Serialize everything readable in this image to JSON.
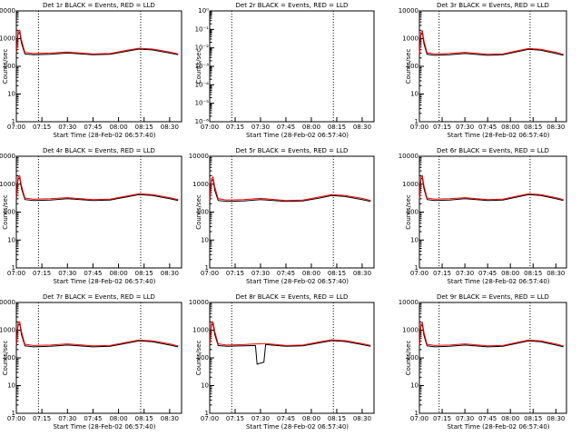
{
  "chart_data": [
    {
      "type": "line",
      "title": "Det 1r BLACK = Events, RED = LLD",
      "xlabel": "Start Time (28-Feb-02 06:57:40)",
      "ylabel": "Counts/sec",
      "log_y": true,
      "xlim": [
        "07:00",
        "08:37"
      ],
      "xticks": [
        "07:00",
        "07:15",
        "07:30",
        "07:45",
        "08:00",
        "08:15",
        "08:30"
      ],
      "ylim": [
        1,
        10000
      ],
      "yticks": [
        1,
        10,
        100,
        1000,
        10000
      ],
      "vlines": [
        "07:13",
        "08:13"
      ],
      "x": [
        "07:00",
        "07:01",
        "07:02",
        "07:03",
        "07:05",
        "07:10",
        "07:20",
        "07:30",
        "07:45",
        "07:55",
        "08:05",
        "08:12",
        "08:20",
        "08:30",
        "08:35"
      ],
      "series": [
        {
          "name": "Events",
          "color": "#000000",
          "values": [
            260,
            1500,
            1700,
            700,
            280,
            260,
            270,
            300,
            260,
            270,
            350,
            420,
            390,
            300,
            260
          ]
        },
        {
          "name": "LLD",
          "color": "#ff0000",
          "values": [
            300,
            1800,
            2000,
            900,
            320,
            290,
            300,
            330,
            280,
            290,
            380,
            450,
            420,
            330,
            280
          ]
        }
      ]
    },
    {
      "type": "line",
      "title": "Det 2r BLACK = Events, RED = LLD",
      "xlabel": "Start Time (28-Feb-02 06:57:40)",
      "ylabel": "Counts/sec",
      "log_y": true,
      "xlim": [
        "07:00",
        "08:37"
      ],
      "xticks": [
        "07:00",
        "07:15",
        "07:30",
        "07:45",
        "08:00",
        "08:15",
        "08:30"
      ],
      "ylim": [
        1e-06,
        1
      ],
      "yticks": [
        {
          "value": 1e-06,
          "label": "10⁻⁶"
        },
        {
          "value": 1e-05,
          "label": "10⁻⁵"
        },
        {
          "value": 0.0001,
          "label": "10⁻⁴"
        },
        {
          "value": 0.001,
          "label": "10⁻³"
        },
        {
          "value": 0.01,
          "label": "10⁻²"
        },
        {
          "value": 0.1,
          "label": "10⁻¹"
        },
        {
          "value": 1,
          "label": "10⁰"
        }
      ],
      "vlines": [
        "07:13",
        "08:13"
      ],
      "x": [],
      "series": []
    },
    {
      "type": "line",
      "title": "Det 3r BLACK = Events, RED = LLD",
      "xlabel": "Start Time (28-Feb-02 06:57:40)",
      "ylabel": "Counts/sec",
      "log_y": true,
      "xlim": [
        "07:00",
        "08:37"
      ],
      "xticks": [
        "07:00",
        "07:15",
        "07:30",
        "07:45",
        "08:00",
        "08:15",
        "08:30"
      ],
      "ylim": [
        1,
        10000
      ],
      "yticks": [
        1,
        10,
        100,
        1000,
        10000
      ],
      "vlines": [
        "07:13",
        "08:13"
      ],
      "x": [
        "07:00",
        "07:01",
        "07:02",
        "07:03",
        "07:05",
        "07:10",
        "07:20",
        "07:30",
        "07:45",
        "07:55",
        "08:05",
        "08:12",
        "08:20",
        "08:30",
        "08:35"
      ],
      "series": [
        {
          "name": "Events",
          "color": "#000000",
          "values": [
            250,
            1400,
            1600,
            650,
            270,
            250,
            260,
            290,
            250,
            260,
            340,
            410,
            380,
            290,
            250
          ]
        },
        {
          "name": "LLD",
          "color": "#ff0000",
          "values": [
            290,
            1700,
            1900,
            850,
            310,
            280,
            290,
            320,
            270,
            280,
            370,
            440,
            410,
            320,
            270
          ]
        }
      ]
    },
    {
      "type": "line",
      "title": "Det 4r BLACK = Events, RED = LLD",
      "xlabel": "Start Time (28-Feb-02 06:57:40)",
      "ylabel": "Counts/sec",
      "log_y": true,
      "xlim": [
        "07:00",
        "08:37"
      ],
      "xticks": [
        "07:00",
        "07:15",
        "07:30",
        "07:45",
        "08:00",
        "08:15",
        "08:30"
      ],
      "ylim": [
        1,
        10000
      ],
      "yticks": [
        1,
        10,
        100,
        1000,
        10000
      ],
      "vlines": [
        "07:13",
        "08:13"
      ],
      "x": [
        "07:00",
        "07:01",
        "07:02",
        "07:03",
        "07:05",
        "07:10",
        "07:20",
        "07:30",
        "07:45",
        "07:55",
        "08:05",
        "08:12",
        "08:20",
        "08:30",
        "08:35"
      ],
      "series": [
        {
          "name": "Events",
          "color": "#000000",
          "values": [
            260,
            1500,
            1700,
            700,
            280,
            260,
            270,
            300,
            260,
            270,
            350,
            420,
            390,
            300,
            260
          ]
        },
        {
          "name": "LLD",
          "color": "#ff0000",
          "values": [
            300,
            1800,
            2000,
            900,
            320,
            290,
            300,
            330,
            280,
            290,
            380,
            450,
            420,
            330,
            280
          ]
        }
      ]
    },
    {
      "type": "line",
      "title": "Det 5r BLACK = Events, RED = LLD",
      "xlabel": "Start Time (28-Feb-02 06:57:40)",
      "ylabel": "Counts/sec",
      "log_y": true,
      "xlim": [
        "07:00",
        "08:37"
      ],
      "xticks": [
        "07:00",
        "07:15",
        "07:30",
        "07:45",
        "08:00",
        "08:15",
        "08:30"
      ],
      "ylim": [
        1,
        10000
      ],
      "yticks": [
        1,
        10,
        100,
        1000,
        10000
      ],
      "vlines": [
        "07:13",
        "08:13"
      ],
      "x": [
        "07:00",
        "07:01",
        "07:02",
        "07:03",
        "07:05",
        "07:10",
        "07:20",
        "07:30",
        "07:45",
        "07:55",
        "08:05",
        "08:12",
        "08:20",
        "08:30",
        "08:35"
      ],
      "series": [
        {
          "name": "Events",
          "color": "#000000",
          "values": [
            240,
            1300,
            1500,
            600,
            260,
            240,
            250,
            280,
            240,
            250,
            320,
            390,
            360,
            280,
            240
          ]
        },
        {
          "name": "LLD",
          "color": "#ff0000",
          "values": [
            280,
            1600,
            1800,
            800,
            300,
            270,
            280,
            310,
            260,
            270,
            350,
            420,
            390,
            310,
            260
          ]
        }
      ]
    },
    {
      "type": "line",
      "title": "Det 6r BLACK = Events, RED = LLD",
      "xlabel": "Start Time (28-Feb-02 06:57:40)",
      "ylabel": "Counts/sec",
      "log_y": true,
      "xlim": [
        "07:00",
        "08:37"
      ],
      "xticks": [
        "07:00",
        "07:15",
        "07:30",
        "07:45",
        "08:00",
        "08:15",
        "08:30"
      ],
      "ylim": [
        1,
        10000
      ],
      "yticks": [
        1,
        10,
        100,
        1000,
        10000
      ],
      "vlines": [
        "07:13",
        "08:13"
      ],
      "x": [
        "07:00",
        "07:01",
        "07:02",
        "07:03",
        "07:05",
        "07:10",
        "07:20",
        "07:30",
        "07:45",
        "07:55",
        "08:05",
        "08:12",
        "08:20",
        "08:30",
        "08:35"
      ],
      "series": [
        {
          "name": "Events",
          "color": "#000000",
          "values": [
            260,
            1500,
            1700,
            700,
            280,
            260,
            270,
            300,
            260,
            270,
            350,
            420,
            390,
            300,
            260
          ]
        },
        {
          "name": "LLD",
          "color": "#ff0000",
          "values": [
            300,
            1800,
            2000,
            900,
            320,
            290,
            300,
            330,
            280,
            290,
            380,
            450,
            420,
            330,
            280
          ]
        }
      ]
    },
    {
      "type": "line",
      "title": "Det 7r BLACK = Events, RED = LLD",
      "xlabel": "Start Time (28-Feb-02 06:57:40)",
      "ylabel": "Counts/sec",
      "log_y": true,
      "xlim": [
        "07:00",
        "08:37"
      ],
      "xticks": [
        "07:00",
        "07:15",
        "07:30",
        "07:45",
        "08:00",
        "08:15",
        "08:30"
      ],
      "ylim": [
        1,
        10000
      ],
      "yticks": [
        1,
        10,
        100,
        1000,
        10000
      ],
      "vlines": [
        "07:13",
        "08:13"
      ],
      "x": [
        "07:00",
        "07:01",
        "07:02",
        "07:03",
        "07:05",
        "07:10",
        "07:20",
        "07:30",
        "07:45",
        "07:55",
        "08:05",
        "08:12",
        "08:20",
        "08:30",
        "08:35"
      ],
      "series": [
        {
          "name": "Events",
          "color": "#000000",
          "values": [
            250,
            1500,
            1700,
            700,
            270,
            250,
            260,
            290,
            250,
            260,
            340,
            410,
            380,
            290,
            250
          ]
        },
        {
          "name": "LLD",
          "color": "#ff0000",
          "values": [
            290,
            1800,
            2000,
            900,
            310,
            280,
            290,
            320,
            270,
            280,
            370,
            440,
            410,
            320,
            270
          ]
        }
      ]
    },
    {
      "type": "line",
      "title": "Det 8r BLACK = Events, RED = LLD",
      "xlabel": "Start Time (28-Feb-02 06:57:40)",
      "ylabel": "Counts/sec",
      "log_y": true,
      "xlim": [
        "07:00",
        "08:37"
      ],
      "xticks": [
        "07:00",
        "07:15",
        "07:30",
        "07:45",
        "08:00",
        "08:15",
        "08:30"
      ],
      "ylim": [
        1,
        10000
      ],
      "yticks": [
        1,
        10,
        100,
        1000,
        10000
      ],
      "vlines": [
        "07:13",
        "08:13"
      ],
      "x": [
        "07:00",
        "07:01",
        "07:02",
        "07:03",
        "07:05",
        "07:10",
        "07:20",
        "07:27",
        "07:28",
        "07:32",
        "07:33",
        "07:45",
        "07:55",
        "08:05",
        "08:12",
        "08:20",
        "08:30",
        "08:35"
      ],
      "series": [
        {
          "name": "Events",
          "color": "#000000",
          "values": [
            260,
            1500,
            1700,
            700,
            280,
            260,
            270,
            280,
            60,
            70,
            300,
            260,
            270,
            350,
            420,
            390,
            300,
            260
          ]
        },
        {
          "name": "LLD",
          "color": "#ff0000",
          "values": [
            300,
            1800,
            2000,
            900,
            320,
            290,
            300,
            320,
            320,
            330,
            330,
            280,
            290,
            380,
            450,
            420,
            330,
            280
          ]
        }
      ]
    },
    {
      "type": "line",
      "title": "Det 9r BLACK = Events, RED = LLD",
      "xlabel": "Start Time (28-Feb-02 06:57:40)",
      "ylabel": "Counts/sec",
      "log_y": true,
      "xlim": [
        "07:00",
        "08:37"
      ],
      "xticks": [
        "07:00",
        "07:15",
        "07:30",
        "07:45",
        "08:00",
        "08:15",
        "08:30"
      ],
      "ylim": [
        1,
        10000
      ],
      "yticks": [
        1,
        10,
        100,
        1000,
        10000
      ],
      "vlines": [
        "07:13",
        "08:13"
      ],
      "x": [
        "07:00",
        "07:01",
        "07:02",
        "07:03",
        "07:05",
        "07:10",
        "07:20",
        "07:30",
        "07:45",
        "07:55",
        "08:05",
        "08:12",
        "08:20",
        "08:30",
        "08:35"
      ],
      "series": [
        {
          "name": "Events",
          "color": "#000000",
          "values": [
            250,
            1400,
            1600,
            650,
            270,
            250,
            260,
            290,
            250,
            260,
            340,
            410,
            380,
            290,
            250
          ]
        },
        {
          "name": "LLD",
          "color": "#ff0000",
          "values": [
            290,
            1700,
            1900,
            850,
            310,
            280,
            290,
            320,
            270,
            280,
            370,
            440,
            410,
            320,
            270
          ]
        }
      ]
    }
  ]
}
